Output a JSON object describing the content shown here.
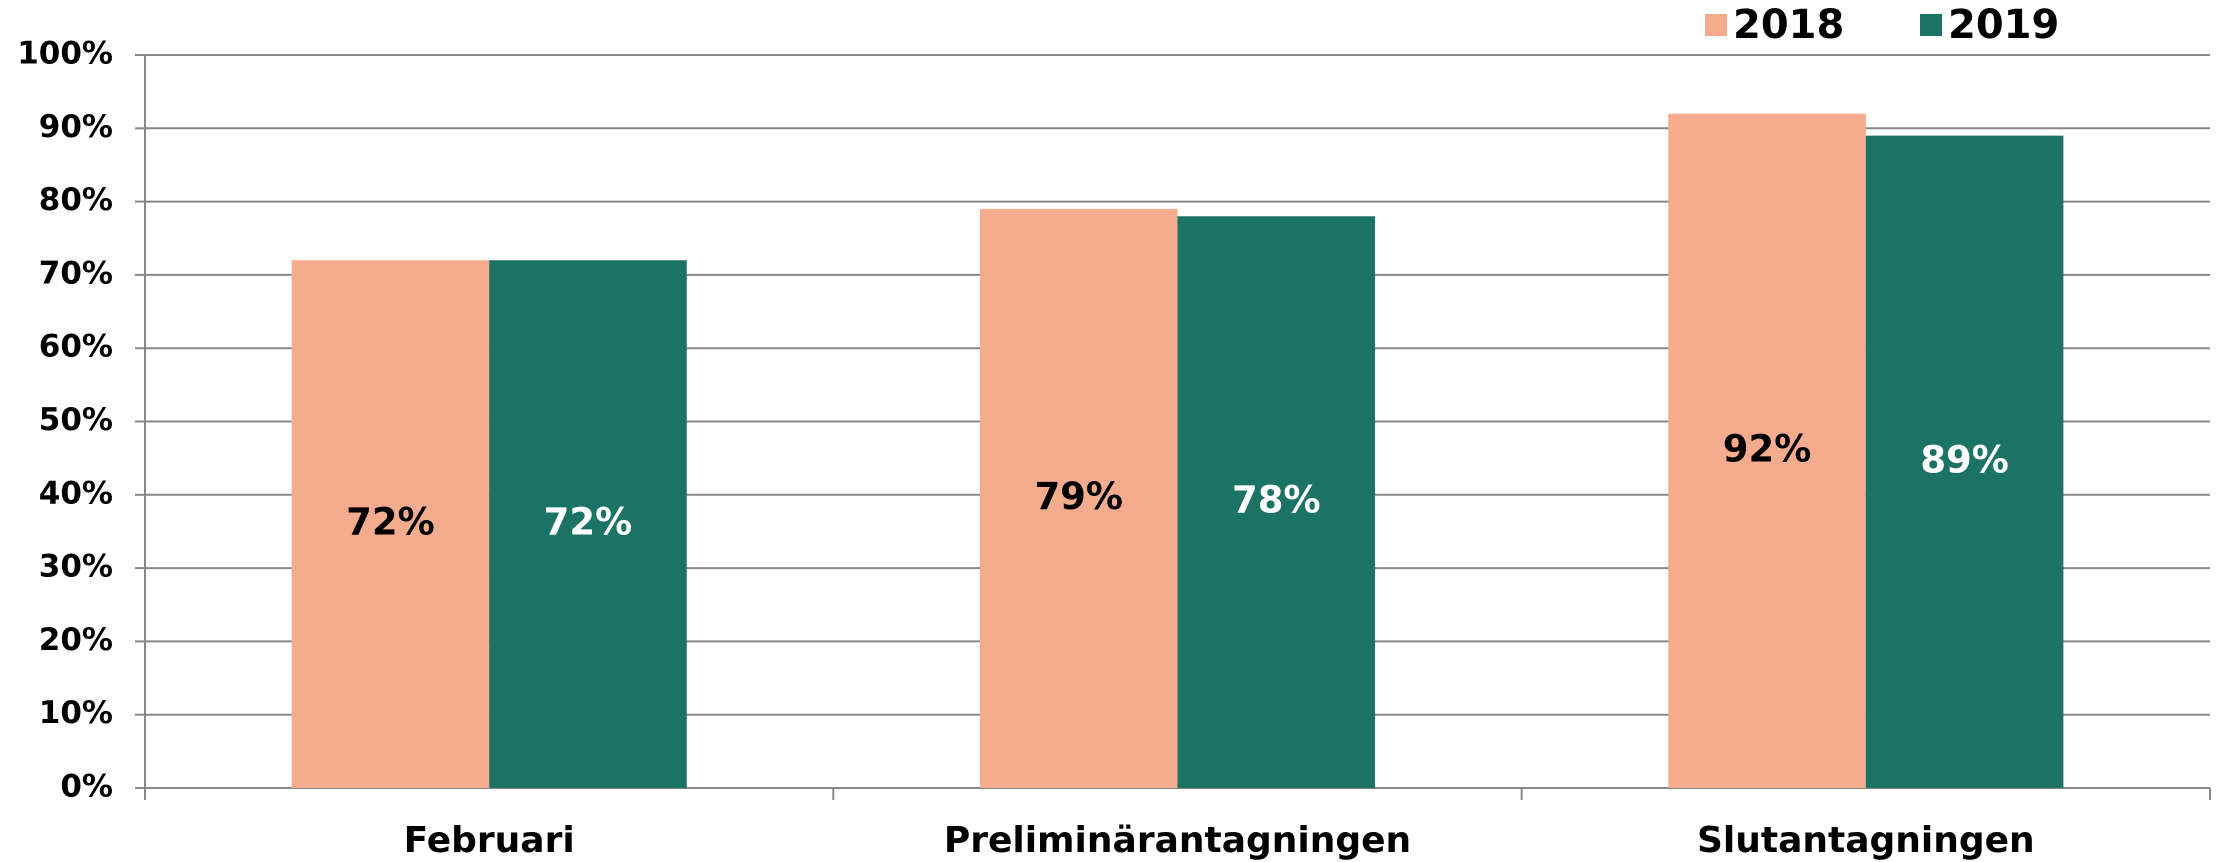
{
  "chart_data": {
    "type": "bar",
    "categories": [
      "Februari",
      "Preliminärantagningen",
      "Slutantagningen"
    ],
    "series": [
      {
        "name": "2018",
        "color": "#f5ab8e",
        "label_color": "#000000",
        "values": [
          72,
          79,
          92
        ],
        "value_labels": [
          "72%",
          "79%",
          "92%"
        ]
      },
      {
        "name": "2019",
        "color": "#1b7366",
        "label_color": "#ffffff",
        "values": [
          72,
          78,
          89
        ],
        "value_labels": [
          "72%",
          "78%",
          "89%"
        ]
      }
    ],
    "ylim": [
      0,
      100
    ],
    "yticks": [
      {
        "value": 0,
        "label": "0%"
      },
      {
        "value": 10,
        "label": "10%"
      },
      {
        "value": 20,
        "label": "20%"
      },
      {
        "value": 30,
        "label": "30%"
      },
      {
        "value": 40,
        "label": "40%"
      },
      {
        "value": 50,
        "label": "50%"
      },
      {
        "value": 60,
        "label": "60%"
      },
      {
        "value": 70,
        "label": "70%"
      },
      {
        "value": 80,
        "label": "80%"
      },
      {
        "value": 90,
        "label": "90%"
      },
      {
        "value": 100,
        "label": "100%"
      }
    ],
    "grid": true,
    "legend": "top-right"
  }
}
